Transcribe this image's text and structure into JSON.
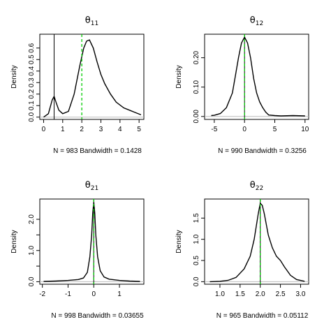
{
  "chart_data": [
    {
      "type": "line",
      "title": "θ11",
      "title_base": "θ",
      "title_sub": "11",
      "xlabel": "N = 983   Bandwidth = 0.1428",
      "ylabel": "Density",
      "xlim": [
        -0.2,
        5.25
      ],
      "ylim": [
        -0.02,
        0.72
      ],
      "xticks": [
        0,
        1,
        2,
        3,
        4,
        5
      ],
      "yticks": [
        0.0,
        0.1,
        0.2,
        0.3,
        0.4,
        0.5,
        0.6
      ],
      "yticklabels": [
        "0.0",
        "0.1",
        "0.2",
        "0.3",
        "0.4",
        "0.5",
        "0.6"
      ],
      "x": [
        0.0,
        0.25,
        0.45,
        0.55,
        0.65,
        0.8,
        1.0,
        1.3,
        1.6,
        1.9,
        2.1,
        2.25,
        2.4,
        2.6,
        2.8,
        3.0,
        3.2,
        3.5,
        3.8,
        4.2,
        4.5,
        4.8,
        5.1
      ],
      "y": [
        0.0,
        0.03,
        0.15,
        0.18,
        0.13,
        0.06,
        0.03,
        0.05,
        0.2,
        0.45,
        0.6,
        0.66,
        0.67,
        0.6,
        0.48,
        0.37,
        0.29,
        0.2,
        0.13,
        0.08,
        0.06,
        0.04,
        0.02
      ],
      "vline_black": 0.55,
      "vline_green": 2.0
    },
    {
      "type": "line",
      "title": "θ12",
      "title_base": "θ",
      "title_sub": "12",
      "xlabel": "N = 990   Bandwidth = 0.3256",
      "ylabel": "Density",
      "xlim": [
        -6.6,
        10.6
      ],
      "ylim": [
        -0.01,
        0.28
      ],
      "xticks": [
        -5,
        0,
        5,
        10
      ],
      "yticks": [
        0.0,
        0.1,
        0.2
      ],
      "yticklabels": [
        "0.00",
        "0.10",
        "0.20"
      ],
      "x": [
        -5.5,
        -5.0,
        -4.0,
        -3.0,
        -2.0,
        -1.5,
        -1.0,
        -0.5,
        0.0,
        0.5,
        1.0,
        1.5,
        2.0,
        2.5,
        3.0,
        3.5,
        4.0,
        5.0,
        6.0,
        8.0,
        10.0
      ],
      "y": [
        0.003,
        0.004,
        0.01,
        0.03,
        0.08,
        0.14,
        0.2,
        0.25,
        0.27,
        0.25,
        0.2,
        0.13,
        0.08,
        0.05,
        0.03,
        0.015,
        0.005,
        0.003,
        0.002,
        0.003,
        0.002
      ],
      "vline_black": 0.0,
      "vline_green": 0.0
    },
    {
      "type": "line",
      "title": "θ21",
      "title_base": "θ",
      "title_sub": "21",
      "xlabel": "N = 998   Bandwidth = 0.03655",
      "ylabel": "Density",
      "xlim": [
        -2.1,
        1.95
      ],
      "ylim": [
        -0.08,
        2.65
      ],
      "xticks": [
        -2,
        -1,
        0,
        1
      ],
      "yticks": [
        0.0,
        0.5,
        1.0,
        1.5,
        2.0
      ],
      "yticklabels": [
        "0.0",
        "",
        "1.0",
        "",
        "2.0"
      ],
      "x": [
        -1.95,
        -1.5,
        -1.0,
        -0.6,
        -0.4,
        -0.25,
        -0.15,
        -0.08,
        -0.04,
        0.0,
        0.04,
        0.08,
        0.15,
        0.25,
        0.4,
        0.6,
        1.0,
        1.4,
        1.8
      ],
      "y": [
        0.01,
        0.02,
        0.04,
        0.07,
        0.12,
        0.3,
        0.8,
        1.5,
        2.2,
        2.55,
        2.2,
        1.5,
        0.8,
        0.35,
        0.15,
        0.08,
        0.04,
        0.02,
        0.01
      ],
      "vline_black": 0.0,
      "vline_green": 0.0
    },
    {
      "type": "line",
      "title": "θ22",
      "title_base": "θ",
      "title_sub": "22",
      "xlabel": "N = 965   Bandwidth = 0.05112",
      "ylabel": "Density",
      "xlim": [
        0.62,
        3.2
      ],
      "ylim": [
        -0.06,
        1.95
      ],
      "xticks": [
        1.0,
        1.5,
        2.0,
        2.5,
        3.0
      ],
      "yticks": [
        0.0,
        0.5,
        1.0,
        1.5
      ],
      "yticklabels": [
        "0.0",
        "0.5",
        "1.0",
        "1.5"
      ],
      "x": [
        0.75,
        1.0,
        1.2,
        1.4,
        1.6,
        1.75,
        1.85,
        1.95,
        2.0,
        2.05,
        2.1,
        2.2,
        2.3,
        2.4,
        2.5,
        2.6,
        2.75,
        2.9,
        3.1
      ],
      "y": [
        0.0,
        0.01,
        0.03,
        0.1,
        0.3,
        0.6,
        1.0,
        1.6,
        1.85,
        1.8,
        1.6,
        1.1,
        0.8,
        0.6,
        0.5,
        0.35,
        0.15,
        0.05,
        0.01
      ],
      "vline_black": 2.0,
      "vline_green": 2.0
    }
  ],
  "colors": {
    "curve": "#000000",
    "true_line": "#000000",
    "mean_line": "#00cc00",
    "zero_line": "#bbbbbb",
    "axis": "#000000"
  }
}
